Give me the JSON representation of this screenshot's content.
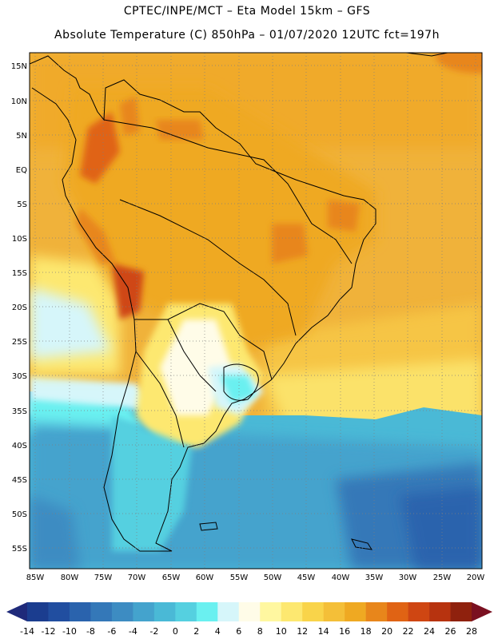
{
  "title": {
    "line1": "CPTEC/INPE/MCT –  Eta Model 15km – GFS",
    "line2": "Absolute Temperature (C) 850hPa – 01/07/2020 12UTC fct=197h"
  },
  "map": {
    "lat_labels": [
      "15N",
      "10N",
      "5N",
      "EQ",
      "5S",
      "10S",
      "15S",
      "20S",
      "25S",
      "30S",
      "35S",
      "40S",
      "45S",
      "50S",
      "55S"
    ],
    "lon_labels": [
      "85W",
      "80W",
      "75W",
      "70W",
      "65W",
      "60W",
      "55W",
      "50W",
      "45W",
      "40W",
      "35W",
      "30W",
      "25W",
      "20W"
    ]
  },
  "legend": {
    "labels": [
      "-14",
      "-12",
      "-10",
      "-8",
      "-6",
      "-4",
      "-2",
      "0",
      "2",
      "4",
      "6",
      "8",
      "10",
      "12",
      "14",
      "16",
      "18",
      "20",
      "22",
      "24",
      "26",
      "28"
    ],
    "colors": [
      "#1b3d8f",
      "#214ea0",
      "#2a63ad",
      "#3478b8",
      "#3d8cc2",
      "#44a3cd",
      "#4ab9d6",
      "#55d0e0",
      "#6af0f0",
      "#d6f6fa",
      "#fffce8",
      "#fff7a0",
      "#fde870",
      "#f9d44a",
      "#f4bf38",
      "#efa922",
      "#e8861b",
      "#e06314",
      "#cf4612",
      "#b7330f",
      "#8f210d"
    ],
    "low_arrow_color": "#1f2a7a",
    "high_arrow_color": "#7a1020"
  }
}
